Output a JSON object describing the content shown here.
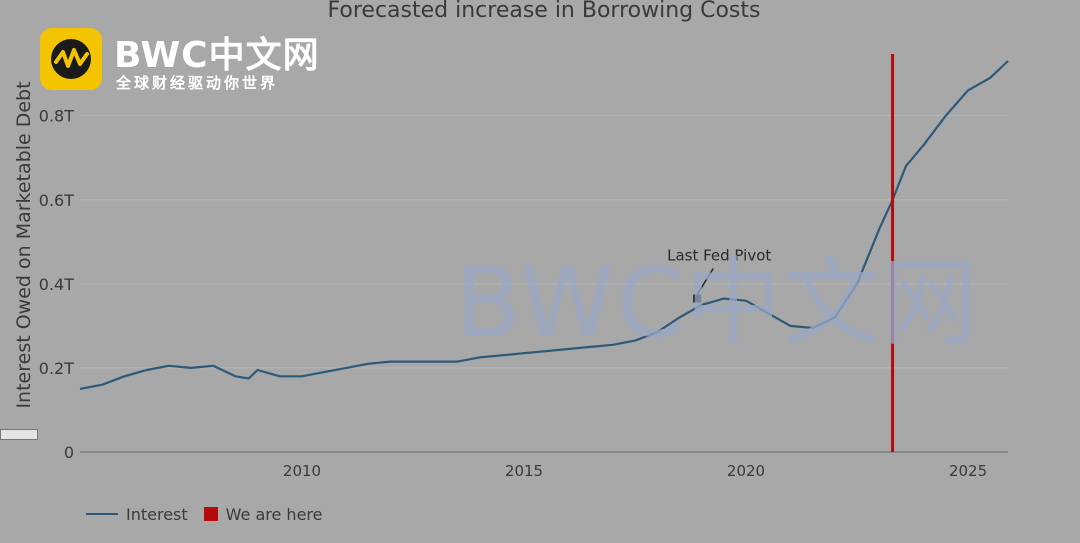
{
  "chart_data": {
    "type": "line",
    "title": "Forecasted increase in Borrowing Costs",
    "xlabel": "",
    "ylabel": "Interest Owed on Marketable Debt",
    "xlim": [
      2005.0,
      2025.9
    ],
    "ylim": [
      0,
      0.98
    ],
    "x_ticks": [
      2010,
      2015,
      2020,
      2025
    ],
    "x_tick_labels": [
      "2010",
      "2015",
      "2020",
      "2025"
    ],
    "y_ticks": [
      0,
      0.2,
      0.4,
      0.6,
      0.8
    ],
    "y_tick_labels": [
      "0",
      "0.2T",
      "0.4T",
      "0.6T",
      "0.8T"
    ],
    "grid": true,
    "legend_position": "bottom-left",
    "series": [
      {
        "name": "Interest",
        "color": "#2c5a7a",
        "x": [
          2005.0,
          2005.5,
          2006.0,
          2006.5,
          2007.0,
          2007.5,
          2008.0,
          2008.5,
          2008.8,
          2009.0,
          2009.5,
          2010.0,
          2010.5,
          2011.0,
          2011.5,
          2012.0,
          2013.0,
          2013.5,
          2014.0,
          2014.5,
          2015.0,
          2015.5,
          2016.0,
          2016.5,
          2017.0,
          2017.5,
          2018.0,
          2018.5,
          2019.0,
          2019.5,
          2020.0,
          2020.5,
          2021.0,
          2021.5,
          2022.0,
          2022.5,
          2023.0,
          2023.3,
          2023.6,
          2024.0,
          2024.5,
          2025.0,
          2025.5,
          2025.9
        ],
        "values": [
          0.15,
          0.16,
          0.18,
          0.195,
          0.205,
          0.2,
          0.205,
          0.18,
          0.175,
          0.195,
          0.18,
          0.18,
          0.19,
          0.2,
          0.21,
          0.215,
          0.215,
          0.215,
          0.225,
          0.23,
          0.235,
          0.24,
          0.245,
          0.25,
          0.255,
          0.265,
          0.285,
          0.32,
          0.35,
          0.365,
          0.36,
          0.33,
          0.3,
          0.295,
          0.32,
          0.4,
          0.53,
          0.6,
          0.68,
          0.73,
          0.8,
          0.86,
          0.89,
          0.93
        ]
      },
      {
        "name": "We are here",
        "color": "#b30b0b",
        "type": "vline",
        "x": 2023.3
      }
    ],
    "annotations": [
      {
        "text": "Last Fed Pivot",
        "x": 2018.9,
        "y": 0.365
      }
    ]
  },
  "branding": {
    "logo_title": "BWC中文网",
    "logo_subtitle": "全球财经驱动你世界",
    "watermark": "BWC中文网"
  }
}
